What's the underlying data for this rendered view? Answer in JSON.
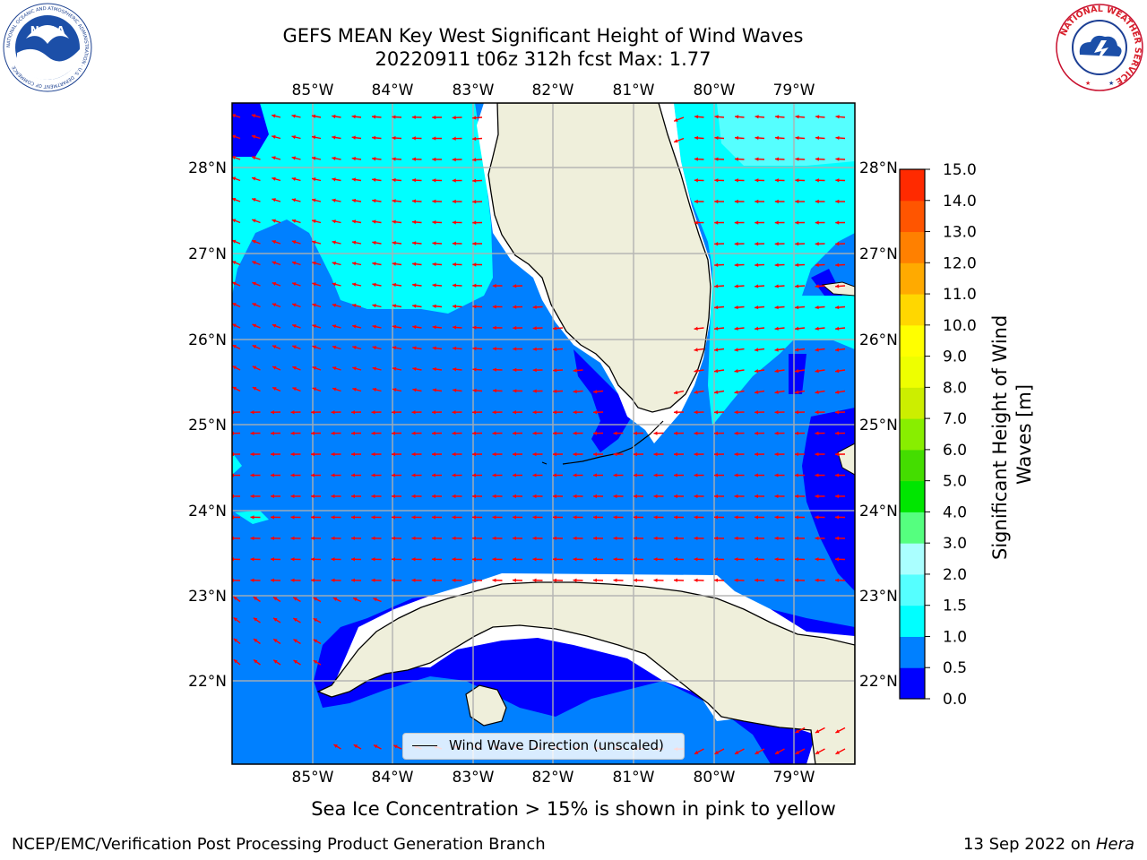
{
  "title_line1": "GEFS MEAN Key West Significant Height of Wind Waves",
  "title_line2": "20220911 t06z 312h fcst   Max: 1.77",
  "map": {
    "lon_ticks": [
      "85°W",
      "84°W",
      "83°W",
      "82°W",
      "81°W",
      "80°W",
      "79°W"
    ],
    "lat_ticks": [
      "28°N",
      "27°N",
      "26°N",
      "25°N",
      "24°N",
      "23°N",
      "22°N"
    ],
    "lon_range": [
      -86.0,
      -78.3
    ],
    "lat_range": [
      21.0,
      28.8
    ],
    "legend_label": "Wind Wave Direction (unscaled)",
    "max_value": 1.77
  },
  "colorbar": {
    "title_line1": "Significant Height of Wind",
    "title_line2": "Waves [m]",
    "tick_labels": [
      "0.0",
      "0.5",
      "1.0",
      "1.5",
      "2.0",
      "3.0",
      "4.0",
      "5.0",
      "6.0",
      "7.0",
      "8.0",
      "9.0",
      "10.0",
      "11.0",
      "12.0",
      "13.0",
      "14.0",
      "15.0"
    ],
    "colors": [
      "#0000ff",
      "#0080ff",
      "#00ffff",
      "#55ffff",
      "#aaffff",
      "#55ff7f",
      "#00e600",
      "#44dd00",
      "#88ee00",
      "#ccee00",
      "#eeff00",
      "#ffff00",
      "#ffd700",
      "#ffaa00",
      "#ff8000",
      "#ff5500",
      "#ff2a00",
      "#ff0000"
    ]
  },
  "colors": {
    "land": "#efefdb",
    "ocean_mid": "#0080ff",
    "ocean_low": "#0000ff",
    "ocean_high": "#00ffff",
    "arrow": "#ff0000",
    "grid": "#b0b0b0"
  },
  "logos": {
    "left_text": "NOAA",
    "left_ring": "NATIONAL OCEANIC AND ATMOSPHERIC ADMINISTRATION · U.S. DEPARTMENT OF COMMERCE",
    "right_ring": "NATIONAL WEATHER SERVICE"
  },
  "caption": "Sea Ice Concentration > 15% is shown in pink to yellow",
  "footer_left": "NCEP/EMC/Verification Post Processing Product Generation Branch",
  "footer_right_date": "13 Sep 2022 on ",
  "footer_right_host": "Hera"
}
